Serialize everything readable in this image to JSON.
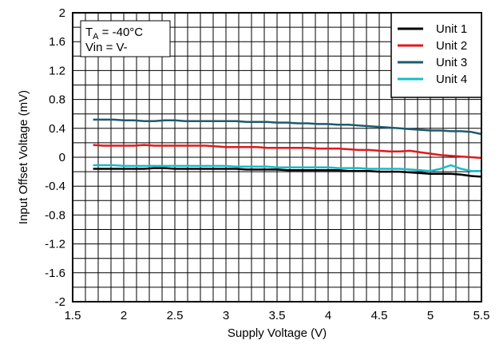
{
  "chart_data": {
    "type": "line",
    "xlabel": "Supply Voltage (V)",
    "ylabel": "Input Offset Voltage (mV)",
    "xlim": [
      1.5,
      5.5
    ],
    "ylim": [
      -2,
      2
    ],
    "x_ticks": [
      1.5,
      2,
      2.5,
      3,
      3.5,
      4,
      4.5,
      5,
      5.5
    ],
    "x_tick_labels": [
      "1.5",
      "2",
      "2.5",
      "3",
      "3.5",
      "4",
      "4.5",
      "5",
      "5.5"
    ],
    "y_ticks": [
      2,
      1.6,
      1.2,
      0.8,
      0.4,
      0,
      -0.4,
      -0.8,
      -1.2,
      -1.6,
      -2
    ],
    "y_tick_labels": [
      "2",
      "1.6",
      "1.2",
      "0.8",
      "0.4",
      "0",
      "-0.4",
      "-0.8",
      "-1.2",
      "-1.6",
      "-2"
    ],
    "grid": true,
    "legend_position": "top-right",
    "annotation": {
      "line1_main": "T",
      "line1_sub": "A",
      "line1_rest": " = -40°C",
      "line2": "Vin = V-"
    },
    "x": [
      1.7,
      1.8,
      1.9,
      2.0,
      2.1,
      2.2,
      2.3,
      2.4,
      2.5,
      2.6,
      2.7,
      2.8,
      2.9,
      3.0,
      3.1,
      3.2,
      3.3,
      3.4,
      3.5,
      3.6,
      3.7,
      3.8,
      3.9,
      4.0,
      4.1,
      4.2,
      4.3,
      4.4,
      4.5,
      4.6,
      4.7,
      4.8,
      4.9,
      5.0,
      5.1,
      5.2,
      5.3,
      5.4,
      5.5
    ],
    "series": [
      {
        "name": "Unit 1",
        "color": "#000000",
        "values": [
          -0.16,
          -0.16,
          -0.16,
          -0.16,
          -0.16,
          -0.16,
          -0.15,
          -0.15,
          -0.16,
          -0.16,
          -0.16,
          -0.16,
          -0.16,
          -0.16,
          -0.16,
          -0.17,
          -0.17,
          -0.17,
          -0.17,
          -0.18,
          -0.18,
          -0.18,
          -0.18,
          -0.18,
          -0.18,
          -0.19,
          -0.19,
          -0.19,
          -0.2,
          -0.2,
          -0.2,
          -0.21,
          -0.22,
          -0.23,
          -0.23,
          -0.23,
          -0.24,
          -0.26,
          -0.27
        ]
      },
      {
        "name": "Unit 2",
        "color": "#e0191b",
        "values": [
          0.17,
          0.16,
          0.16,
          0.16,
          0.16,
          0.17,
          0.16,
          0.16,
          0.16,
          0.16,
          0.16,
          0.16,
          0.15,
          0.14,
          0.14,
          0.14,
          0.14,
          0.13,
          0.13,
          0.13,
          0.13,
          0.13,
          0.12,
          0.12,
          0.12,
          0.11,
          0.1,
          0.1,
          0.09,
          0.08,
          0.08,
          0.09,
          0.07,
          0.05,
          0.03,
          0.02,
          0.01,
          0.0,
          -0.01
        ]
      },
      {
        "name": "Unit 3",
        "color": "#1d5a6e",
        "values": [
          0.52,
          0.52,
          0.52,
          0.51,
          0.51,
          0.5,
          0.5,
          0.51,
          0.51,
          0.5,
          0.5,
          0.5,
          0.5,
          0.5,
          0.5,
          0.49,
          0.49,
          0.49,
          0.48,
          0.48,
          0.47,
          0.47,
          0.46,
          0.46,
          0.45,
          0.45,
          0.44,
          0.43,
          0.42,
          0.41,
          0.4,
          0.39,
          0.38,
          0.37,
          0.37,
          0.36,
          0.36,
          0.35,
          0.32
        ]
      },
      {
        "name": "Unit 4",
        "color": "#16bcc8",
        "values": [
          -0.11,
          -0.11,
          -0.11,
          -0.12,
          -0.12,
          -0.12,
          -0.12,
          -0.12,
          -0.12,
          -0.12,
          -0.12,
          -0.12,
          -0.12,
          -0.12,
          -0.13,
          -0.13,
          -0.13,
          -0.13,
          -0.14,
          -0.14,
          -0.14,
          -0.14,
          -0.14,
          -0.14,
          -0.15,
          -0.15,
          -0.15,
          -0.16,
          -0.16,
          -0.16,
          -0.16,
          -0.17,
          -0.18,
          -0.19,
          -0.16,
          -0.11,
          -0.16,
          -0.19,
          -0.19
        ]
      }
    ]
  }
}
